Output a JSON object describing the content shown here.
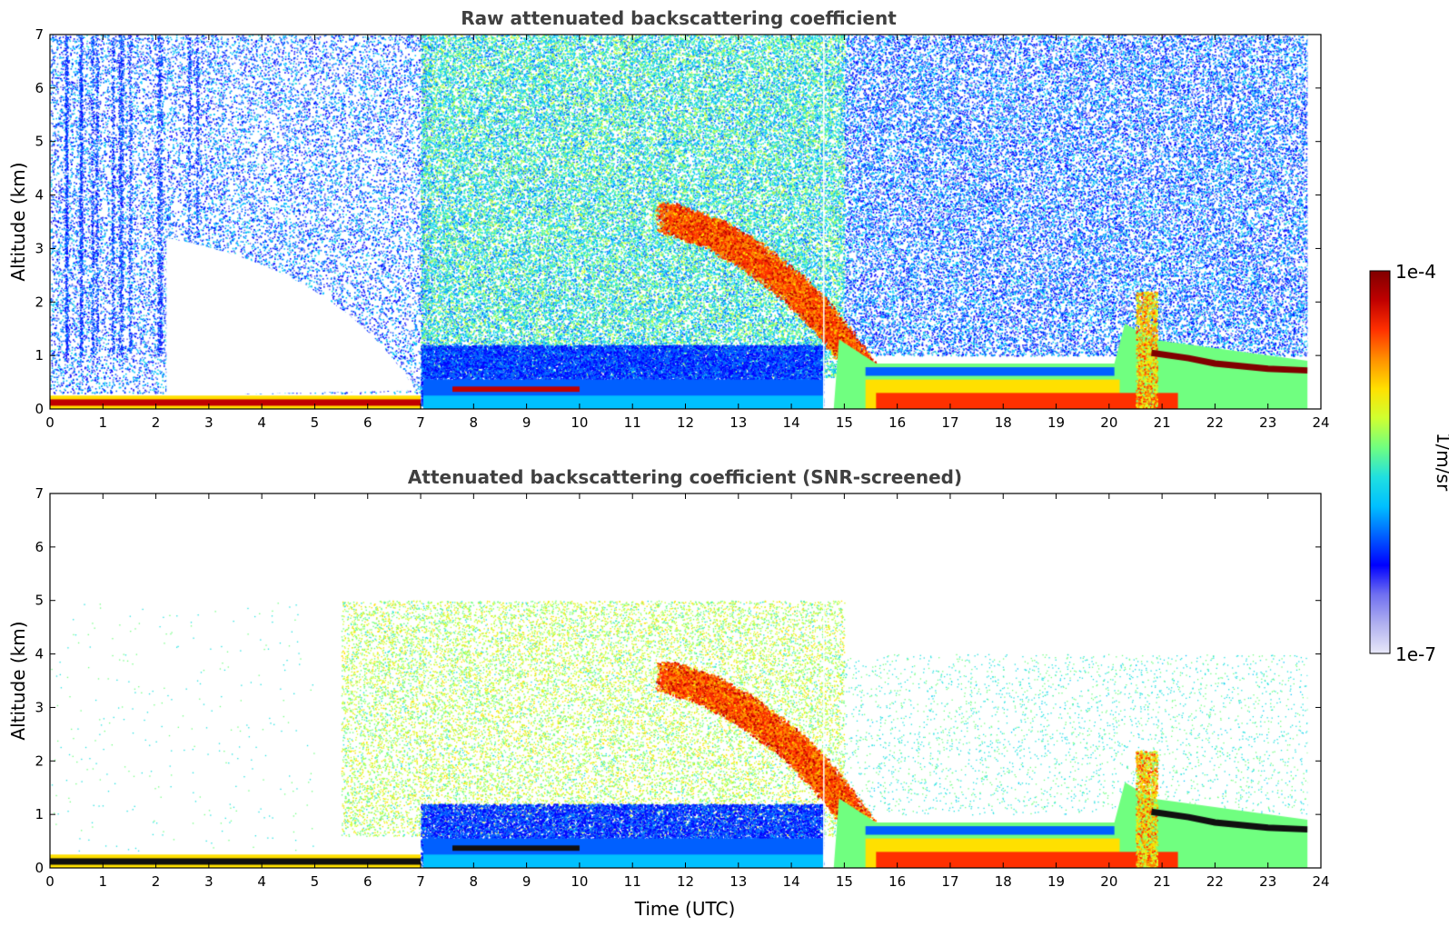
{
  "chart_data": [
    {
      "type": "heatmap",
      "title": "Raw attenuated backscattering coefficient",
      "xlabel": "",
      "ylabel": "Altitude (km)",
      "xlim": [
        0,
        24
      ],
      "ylim": [
        0,
        7
      ],
      "xticks": [
        "0",
        "1",
        "2",
        "3",
        "4",
        "5",
        "6",
        "7",
        "8",
        "9",
        "10",
        "11",
        "12",
        "13",
        "14",
        "15",
        "16",
        "17",
        "18",
        "19",
        "20",
        "21",
        "22",
        "23",
        "24"
      ],
      "yticks": [
        "0",
        "1",
        "2",
        "3",
        "4",
        "5",
        "6",
        "7"
      ],
      "variant": "raw",
      "features": {
        "surface_layer": {
          "x": [
            0,
            7
          ],
          "top_km": [
            0.15,
            0.25
          ]
        },
        "residual_aerosol_layer": {
          "x": [
            7,
            10
          ],
          "altitude_km": 0.35
        },
        "cloud_descending": {
          "points": [
            [
              11.6,
              3.6
            ],
            [
              12.5,
              3.3
            ],
            [
              13.2,
              2.9
            ],
            [
              14.0,
              2.3
            ],
            [
              14.5,
              1.8
            ],
            [
              15.0,
              1.2
            ],
            [
              15.5,
              0.5
            ]
          ]
        },
        "boundary_layer": {
          "x": [
            15.3,
            20.0
          ],
          "top_km": 0.7
        },
        "convective_plume": {
          "x": 20.7,
          "top_km": 2.2
        },
        "cloud_base_layer": {
          "points": [
            [
              20.8,
              1.05
            ],
            [
              21.5,
              0.95
            ],
            [
              22.0,
              0.85
            ],
            [
              23.0,
              0.75
            ],
            [
              23.75,
              0.72
            ]
          ]
        },
        "data_end_time": 23.75,
        "data_gap_time": 14.6
      }
    },
    {
      "type": "heatmap",
      "title": "Attenuated backscattering coefficient (SNR-screened)",
      "xlabel": "Time (UTC)",
      "ylabel": "Altitude (km)",
      "xlim": [
        0,
        24
      ],
      "ylim": [
        0,
        7
      ],
      "xticks": [
        "0",
        "1",
        "2",
        "3",
        "4",
        "5",
        "6",
        "7",
        "8",
        "9",
        "10",
        "11",
        "12",
        "13",
        "14",
        "15",
        "16",
        "17",
        "18",
        "19",
        "20",
        "21",
        "22",
        "23",
        "24"
      ],
      "yticks": [
        "0",
        "1",
        "2",
        "3",
        "4",
        "5",
        "6",
        "7"
      ],
      "variant": "screened"
    }
  ],
  "colorbar": {
    "label": "1/m/sr",
    "max_label": "1e-4",
    "min_label": "1e-7",
    "scale": "log",
    "range": [
      1e-07,
      0.0001
    ],
    "colors": [
      "#e8e8f8",
      "#b0b0f0",
      "#7070f0",
      "#0000ff",
      "#0060ff",
      "#00c0ff",
      "#20e0e0",
      "#70ff80",
      "#d0ff30",
      "#ffe000",
      "#ff9000",
      "#ff3000",
      "#c00000",
      "#800000"
    ]
  }
}
